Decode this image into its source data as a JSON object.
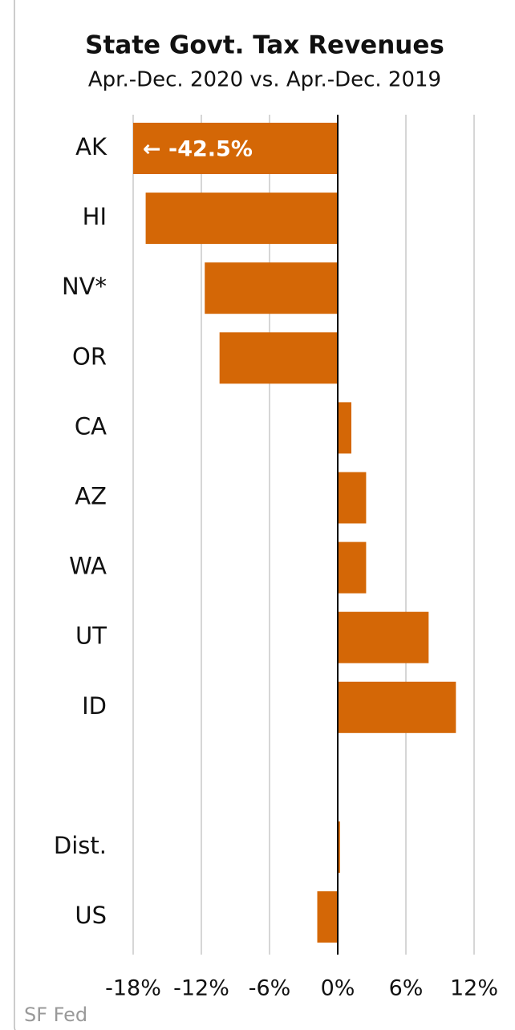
{
  "chart_data": {
    "type": "barh",
    "title": "State Govt. Tax Revenues",
    "subtitle": "Apr.-Dec. 2020 vs. Apr.-Dec. 2019",
    "categories": [
      "AK",
      "HI",
      "NV*",
      "OR",
      "CA",
      "AZ",
      "WA",
      "UT",
      "ID",
      null,
      "Dist.",
      "US"
    ],
    "values": [
      -42.5,
      -16.9,
      -11.7,
      -10.4,
      1.2,
      2.5,
      2.5,
      8.0,
      10.4,
      null,
      0.2,
      -1.8
    ],
    "value_labels": [
      "← -42.5%",
      null,
      null,
      null,
      null,
      null,
      null,
      null,
      null,
      null,
      null,
      null
    ],
    "color": "#d46706",
    "xlim": [
      -18,
      12
    ],
    "xticks": [
      {
        "value": -18,
        "label": "-18%"
      },
      {
        "value": -12,
        "label": "-12%"
      },
      {
        "value": -6,
        "label": "-6%"
      },
      {
        "value": 0,
        "label": "0%"
      },
      {
        "value": 6,
        "label": "6%"
      },
      {
        "value": 12,
        "label": "12%"
      }
    ],
    "grid": true,
    "source": "SF Fed"
  }
}
